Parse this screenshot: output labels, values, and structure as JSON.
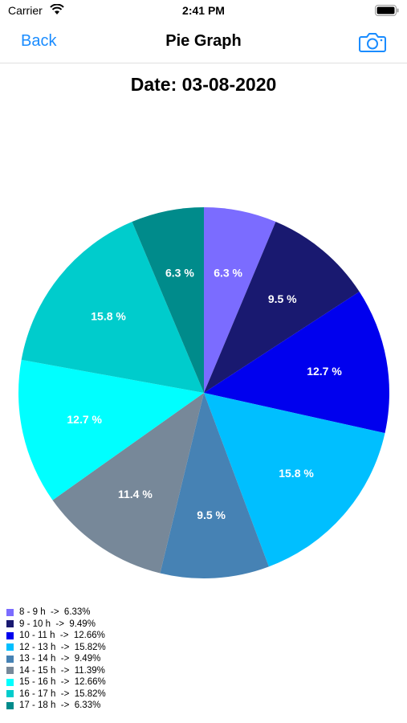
{
  "status_bar": {
    "carrier": "Carrier",
    "time": "2:41 PM"
  },
  "nav": {
    "back_label": "Back",
    "title": "Pie Graph",
    "camera_icon": "camera-icon"
  },
  "chart_data": {
    "type": "pie",
    "title": "Date: 03-08-2020",
    "categories": [
      "8 - 9 h",
      "9 - 10 h",
      "10 - 11 h",
      "12 - 13 h",
      "13 - 14 h",
      "14 - 15 h",
      "15 - 16 h",
      "16 - 17 h",
      "17 - 18 h"
    ],
    "values": [
      6.33,
      9.49,
      12.66,
      15.82,
      9.49,
      11.39,
      12.66,
      15.82,
      6.33
    ],
    "slice_labels": [
      "6.3 %",
      "9.5 %",
      "12.7 %",
      "15.8 %",
      "9.5 %",
      "11.4 %",
      "12.7 %",
      "15.8 %",
      "6.3 %"
    ],
    "legend_labels": [
      "8 - 9 h  ->  6.33%",
      "9 - 10 h  ->  9.49%",
      "10 - 11 h  ->  12.66%",
      "12 - 13 h  ->  15.82%",
      "13 - 14 h  ->  9.49%",
      "14 - 15 h  ->  11.39%",
      "15 - 16 h  ->  12.66%",
      "16 - 17 h  ->  15.82%",
      "17 - 18 h  ->  6.33%"
    ],
    "colors": [
      "#7b6cff",
      "#191970",
      "#0000ee",
      "#00bfff",
      "#4682b4",
      "#778899",
      "#00ffff",
      "#00cccc",
      "#008b8b"
    ],
    "legend_position": "bottom-left"
  }
}
